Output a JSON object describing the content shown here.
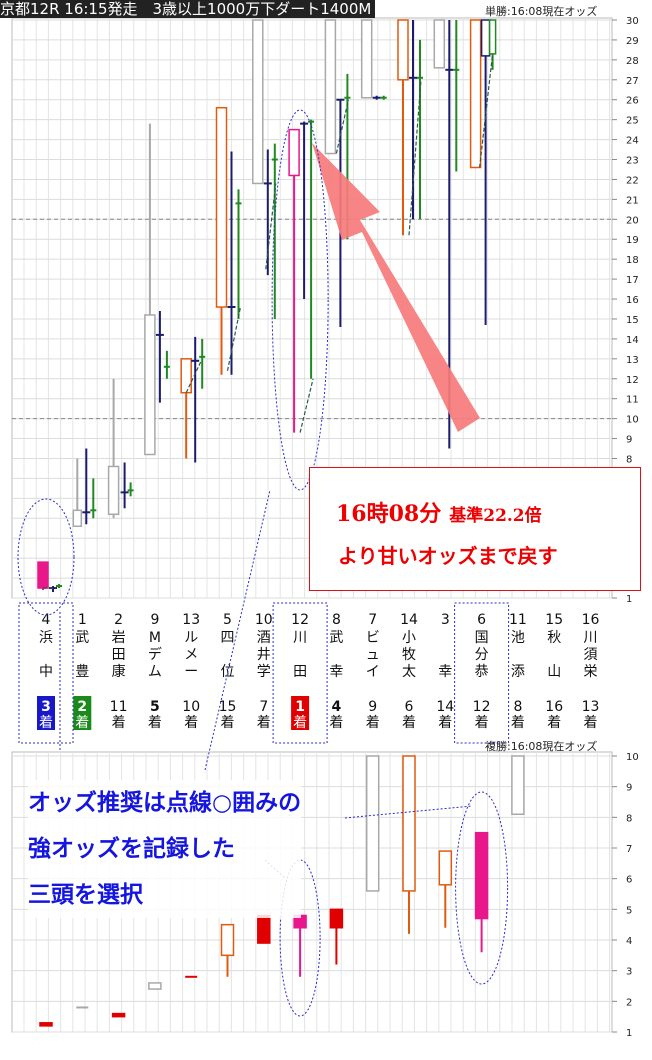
{
  "title": "京都12R 16:15発走　3歳以上1000万下ダート1400M",
  "tansho_caption": "単勝:16:08現在オッズ",
  "fukusho_caption": "複勝:16:08現在オッズ",
  "callout": {
    "line1_time": "16時08分",
    "line1_base": "基準22.2倍",
    "line2": "より甘いオッズまで戻す"
  },
  "note_lines": [
    "オッズ推奨は点線○囲みの",
    "強オッズを記録した",
    "三頭を選択"
  ],
  "colors": {
    "gray": "#a8a8a8",
    "navy": "#1c1c6e",
    "green": "#1f8a1f",
    "orange": "#e05a10",
    "magenta": "#e8178a",
    "red": "#e00000",
    "arrow": "#f77b7b",
    "ellipse": "#2b2bd0",
    "badge_first": "#e00000",
    "badge_second": "#1a8a1a",
    "badge_third": "#1818c8"
  },
  "chart_data": [
    {
      "type": "candlestick",
      "name_ref": "tansho_caption",
      "ylim": [
        1,
        30
      ],
      "yticks": [
        1,
        2,
        3,
        4,
        5,
        6,
        7,
        8,
        9,
        10,
        11,
        12,
        13,
        14,
        15,
        16,
        17,
        18,
        19,
        20,
        21,
        22,
        23,
        24,
        25,
        26,
        27,
        28,
        29,
        30
      ],
      "reference_lines": [
        10,
        20
      ],
      "annotation_level": 22.2,
      "horses": [
        {
          "num": "4",
          "name": [
            "浜",
            "中"
          ],
          "finish": "3",
          "finish_style": "third",
          "circled": true
        },
        {
          "num": "1",
          "name": [
            "武",
            "豊"
          ],
          "finish": "2",
          "finish_style": "second",
          "circled": false
        },
        {
          "num": "2",
          "name": [
            "岩",
            "田",
            "康"
          ],
          "finish": "11",
          "finish_style": "plain",
          "circled": false
        },
        {
          "num": "9",
          "name": [
            "M",
            "デ",
            "ム"
          ],
          "finish": "5",
          "finish_style": "bold",
          "circled": false
        },
        {
          "num": "13",
          "name": [
            "ル",
            "メ",
            "ー"
          ],
          "finish": "10",
          "finish_style": "plain",
          "circled": false
        },
        {
          "num": "5",
          "name": [
            "四",
            "位"
          ],
          "finish": "15",
          "finish_style": "plain",
          "circled": false
        },
        {
          "num": "10",
          "name": [
            "酒",
            "井",
            "学"
          ],
          "finish": "7",
          "finish_style": "plain",
          "circled": false
        },
        {
          "num": "12",
          "name": [
            "川",
            "田"
          ],
          "finish": "1",
          "finish_style": "first",
          "circled": true
        },
        {
          "num": "8",
          "name": [
            "武",
            "幸"
          ],
          "finish": "4",
          "finish_style": "bold",
          "circled": false
        },
        {
          "num": "7",
          "name": [
            "ビ",
            "ュ",
            "イ"
          ],
          "finish": "9",
          "finish_style": "plain",
          "circled": false
        },
        {
          "num": "14",
          "name": [
            "小",
            "牧",
            "太"
          ],
          "finish": "6",
          "finish_style": "plain",
          "circled": false
        },
        {
          "num": "3",
          "name": [
            "幸"
          ],
          "finish": "14",
          "finish_style": "plain",
          "circled": false
        },
        {
          "num": "6",
          "name": [
            "国",
            "分",
            "恭"
          ],
          "finish": "12",
          "finish_style": "plain",
          "circled": true
        },
        {
          "num": "11",
          "name": [
            "池",
            "添"
          ],
          "finish": "8",
          "finish_style": "plain",
          "circled": false
        },
        {
          "num": "15",
          "name": [
            "秋",
            "山"
          ],
          "finish": "16",
          "finish_style": "plain",
          "circled": false
        },
        {
          "num": "16",
          "name": [
            "川",
            "須",
            "栄"
          ],
          "finish": "13",
          "finish_style": "plain",
          "circled": false
        }
      ],
      "candles": [
        {
          "idx": 0,
          "dx": -3,
          "w": 10,
          "open": 2.8,
          "close": 1.5,
          "high": 2.8,
          "low": 1.4,
          "color": "magenta",
          "filled": true
        },
        {
          "idx": 0,
          "dx": 7,
          "w": 8,
          "open": 1.5,
          "close": 1.5,
          "high": 1.6,
          "low": 1.3,
          "color": "navy",
          "filled": false
        },
        {
          "idx": 0,
          "dx": 13,
          "w": 6,
          "open": 1.6,
          "close": 1.6,
          "high": 1.7,
          "low": 1.5,
          "color": "green",
          "filled": false
        },
        {
          "idx": 1,
          "dx": -5,
          "w": 8,
          "open": 5.4,
          "close": 4.6,
          "high": 8.0,
          "low": 4.6,
          "color": "gray",
          "filled": false
        },
        {
          "idx": 1,
          "dx": 4,
          "w": 8,
          "open": 5.3,
          "close": 5.3,
          "high": 8.5,
          "low": 4.7,
          "color": "navy",
          "filled": false
        },
        {
          "idx": 1,
          "dx": 11,
          "w": 6,
          "open": 5.4,
          "close": 5.4,
          "high": 7.0,
          "low": 5.0,
          "color": "green",
          "filled": false
        },
        {
          "idx": 2,
          "dx": -5,
          "w": 10,
          "open": 7.6,
          "close": 5.2,
          "high": 12.0,
          "low": 5.0,
          "color": "gray",
          "filled": false
        },
        {
          "idx": 2,
          "dx": 6,
          "w": 8,
          "open": 6.3,
          "close": 6.3,
          "high": 7.8,
          "low": 5.5,
          "color": "navy",
          "filled": false
        },
        {
          "idx": 2,
          "dx": 12,
          "w": 6,
          "open": 6.4,
          "close": 6.4,
          "high": 6.8,
          "low": 6.1,
          "color": "green",
          "filled": false
        },
        {
          "idx": 3,
          "dx": -5,
          "w": 10,
          "open": 15.2,
          "close": 8.2,
          "high": 24.8,
          "low": 8.2,
          "color": "gray",
          "filled": false
        },
        {
          "idx": 3,
          "dx": 5,
          "w": 8,
          "open": 14.2,
          "close": 14.2,
          "high": 15.4,
          "low": 10.8,
          "color": "navy",
          "filled": false
        },
        {
          "idx": 3,
          "dx": 12,
          "w": 6,
          "open": 12.6,
          "close": 12.6,
          "high": 13.4,
          "low": 12.0,
          "color": "green",
          "filled": false
        },
        {
          "idx": 4,
          "dx": -5,
          "w": 10,
          "open": 13.0,
          "close": 11.3,
          "high": 13.0,
          "low": 8.0,
          "color": "orange",
          "filled": false
        },
        {
          "idx": 4,
          "dx": 4,
          "w": 8,
          "open": 12.9,
          "close": 12.9,
          "high": 14.1,
          "low": 7.8,
          "color": "navy",
          "filled": false
        },
        {
          "idx": 4,
          "dx": 11,
          "w": 6,
          "open": 13.1,
          "close": 13.1,
          "high": 14.0,
          "low": 11.5,
          "color": "green",
          "filled": false
        },
        {
          "idx": 5,
          "dx": -6,
          "w": 10,
          "open": 25.6,
          "close": 15.6,
          "high": 25.6,
          "low": 12.2,
          "color": "orange",
          "filled": false
        },
        {
          "idx": 5,
          "dx": 4,
          "w": 8,
          "open": 15.6,
          "close": 15.6,
          "high": 23.4,
          "low": 12.2,
          "color": "navy",
          "filled": false
        },
        {
          "idx": 5,
          "dx": 11,
          "w": 6,
          "open": 20.8,
          "close": 20.8,
          "high": 21.5,
          "low": 15.0,
          "color": "green",
          "filled": false
        },
        {
          "idx": 6,
          "dx": -6,
          "w": 10,
          "open": 30,
          "close": 21.8,
          "high": 30,
          "low": 21.8,
          "color": "gray",
          "filled": false
        },
        {
          "idx": 6,
          "dx": 4,
          "w": 8,
          "open": 21.8,
          "close": 21.8,
          "high": 23.5,
          "low": 17.2,
          "color": "navy",
          "filled": false
        },
        {
          "idx": 6,
          "dx": 11,
          "w": 6,
          "open": 23.0,
          "close": 23.0,
          "high": 23.8,
          "low": 15.0,
          "color": "green",
          "filled": false
        },
        {
          "idx": 7,
          "dx": -6,
          "w": 10,
          "open": 24.5,
          "close": 22.2,
          "high": 24.5,
          "low": 9.3,
          "color": "magenta",
          "filled": false
        },
        {
          "idx": 7,
          "dx": 4,
          "w": 8,
          "open": 24.8,
          "close": 24.8,
          "high": 24.9,
          "low": 16.0,
          "color": "navy",
          "filled": false
        },
        {
          "idx": 7,
          "dx": 11,
          "w": 6,
          "open": 24.9,
          "close": 24.9,
          "high": 25.0,
          "low": 12.0,
          "color": "green",
          "filled": false
        },
        {
          "idx": 8,
          "dx": -6,
          "w": 10,
          "open": 30,
          "close": 23.3,
          "high": 30,
          "low": 23.3,
          "color": "gray",
          "filled": false
        },
        {
          "idx": 8,
          "dx": 4,
          "w": 8,
          "open": 26.0,
          "close": 26.0,
          "high": 26.0,
          "low": 14.6,
          "color": "navy",
          "filled": false
        },
        {
          "idx": 8,
          "dx": 11,
          "w": 6,
          "open": 26.1,
          "close": 26.1,
          "high": 27.3,
          "low": 19.0,
          "color": "green",
          "filled": false
        },
        {
          "idx": 9,
          "dx": -6,
          "w": 10,
          "open": 30,
          "close": 26.1,
          "high": 30,
          "low": 26.1,
          "color": "gray",
          "filled": false
        },
        {
          "idx": 9,
          "dx": 4,
          "w": 8,
          "open": 26.1,
          "close": 26.1,
          "high": 26.2,
          "low": 26.0,
          "color": "navy",
          "filled": false
        },
        {
          "idx": 9,
          "dx": 11,
          "w": 6,
          "open": 26.1,
          "close": 26.1,
          "high": 26.2,
          "low": 26.0,
          "color": "green",
          "filled": false
        },
        {
          "idx": 10,
          "dx": -6,
          "w": 10,
          "open": 30,
          "close": 27.0,
          "high": 30,
          "low": 19.2,
          "color": "orange",
          "filled": false
        },
        {
          "idx": 10,
          "dx": 4,
          "w": 8,
          "open": 27.1,
          "close": 27.1,
          "high": 30,
          "low": 20.0,
          "color": "navy",
          "filled": false
        },
        {
          "idx": 10,
          "dx": 11,
          "w": 6,
          "open": 27.1,
          "close": 27.1,
          "high": 29.0,
          "low": 20.0,
          "color": "green",
          "filled": false
        },
        {
          "idx": 11,
          "dx": -6,
          "w": 10,
          "open": 30,
          "close": 27.6,
          "high": 30,
          "low": 27.6,
          "color": "gray",
          "filled": false
        },
        {
          "idx": 11,
          "dx": 4,
          "w": 8,
          "open": 27.5,
          "close": 27.5,
          "high": 30,
          "low": 8.5,
          "color": "navy",
          "filled": false
        },
        {
          "idx": 11,
          "dx": 11,
          "w": 6,
          "open": 27.5,
          "close": 27.5,
          "high": 30,
          "low": 22.4,
          "color": "green",
          "filled": false
        },
        {
          "idx": 12,
          "dx": -6,
          "w": 10,
          "open": 30,
          "close": 22.6,
          "high": 30,
          "low": 22.6,
          "color": "orange",
          "filled": false
        },
        {
          "idx": 12,
          "dx": 4,
          "w": 8,
          "open": 30,
          "close": 28.2,
          "high": 30,
          "low": 14.7,
          "color": "navy",
          "filled": false
        },
        {
          "idx": 12,
          "dx": 11,
          "w": 6,
          "open": 30,
          "close": 28.3,
          "high": 30,
          "low": 27.5,
          "color": "green",
          "filled": false
        }
      ],
      "trend_lines": [
        {
          "idx": 0,
          "from": [
            1.5,
            -3
          ],
          "to": [
            1.5,
            10
          ]
        },
        {
          "idx": 4,
          "from": [
            11.3,
            -5
          ],
          "to": [
            12.9,
            10
          ]
        },
        {
          "idx": 5,
          "from": [
            12.4,
            0
          ],
          "to": [
            15.6,
            13
          ]
        },
        {
          "idx": 6,
          "from": [
            17.5,
            2
          ],
          "to": [
            21.8,
            12
          ]
        },
        {
          "idx": 7,
          "from": [
            9.3,
            0
          ],
          "to": [
            12.0,
            13
          ]
        },
        {
          "idx": 8,
          "from": [
            23.3,
            0
          ],
          "to": [
            26.0,
            12
          ]
        },
        {
          "idx": 10,
          "from": [
            19.2,
            0
          ],
          "to": [
            27.0,
            12
          ]
        },
        {
          "idx": 12,
          "from": [
            22.6,
            -2
          ],
          "to": [
            28.3,
            11
          ]
        }
      ]
    },
    {
      "type": "candlestick",
      "name_ref": "fukusho_caption",
      "ylim": [
        1,
        10
      ],
      "yticks": [
        1,
        2,
        3,
        4,
        5,
        6,
        7,
        8,
        9,
        10
      ],
      "candles": [
        {
          "idx": 0,
          "open": 1.3,
          "close": 1.2,
          "high": 1.3,
          "low": 1.2,
          "color": "red",
          "filled": true
        },
        {
          "idx": 1,
          "open": 1.8,
          "close": 1.8,
          "high": 1.8,
          "low": 1.8,
          "color": "gray",
          "filled": false
        },
        {
          "idx": 2,
          "open": 1.6,
          "close": 1.5,
          "high": 1.6,
          "low": 1.5,
          "color": "red",
          "filled": true
        },
        {
          "idx": 3,
          "open": 2.6,
          "close": 2.4,
          "high": 2.6,
          "low": 2.4,
          "color": "gray",
          "filled": false
        },
        {
          "idx": 4,
          "open": 2.8,
          "close": 2.8,
          "high": 2.8,
          "low": 2.8,
          "color": "red",
          "filled": false
        },
        {
          "idx": 5,
          "open": 4.5,
          "close": 3.5,
          "high": 4.5,
          "low": 2.8,
          "color": "orange",
          "filled": false
        },
        {
          "idx": 6,
          "open": 4.8,
          "close": 3.9,
          "high": 4.8,
          "low": 3.9,
          "color": "red",
          "filled": true
        },
        {
          "idx": 7,
          "open": 4.8,
          "close": 4.4,
          "high": 4.8,
          "low": 2.8,
          "color": "magenta",
          "filled": true
        },
        {
          "idx": 8,
          "open": 5.0,
          "close": 4.4,
          "high": 5.0,
          "low": 3.2,
          "color": "red",
          "filled": true
        },
        {
          "idx": 9,
          "open": 10,
          "close": 5.6,
          "high": 10,
          "low": 5.6,
          "color": "gray",
          "filled": false
        },
        {
          "idx": 10,
          "open": 10,
          "close": 5.6,
          "high": 10,
          "low": 4.2,
          "color": "orange",
          "filled": false
        },
        {
          "idx": 11,
          "open": 6.9,
          "close": 5.8,
          "high": 6.9,
          "low": 4.4,
          "color": "orange",
          "filled": false
        },
        {
          "idx": 12,
          "open": 7.5,
          "close": 4.7,
          "high": 7.5,
          "low": 3.6,
          "color": "magenta",
          "filled": true
        },
        {
          "idx": 13,
          "open": 10,
          "close": 8.1,
          "high": 10,
          "low": 8.1,
          "color": "gray",
          "filled": false
        }
      ]
    }
  ]
}
